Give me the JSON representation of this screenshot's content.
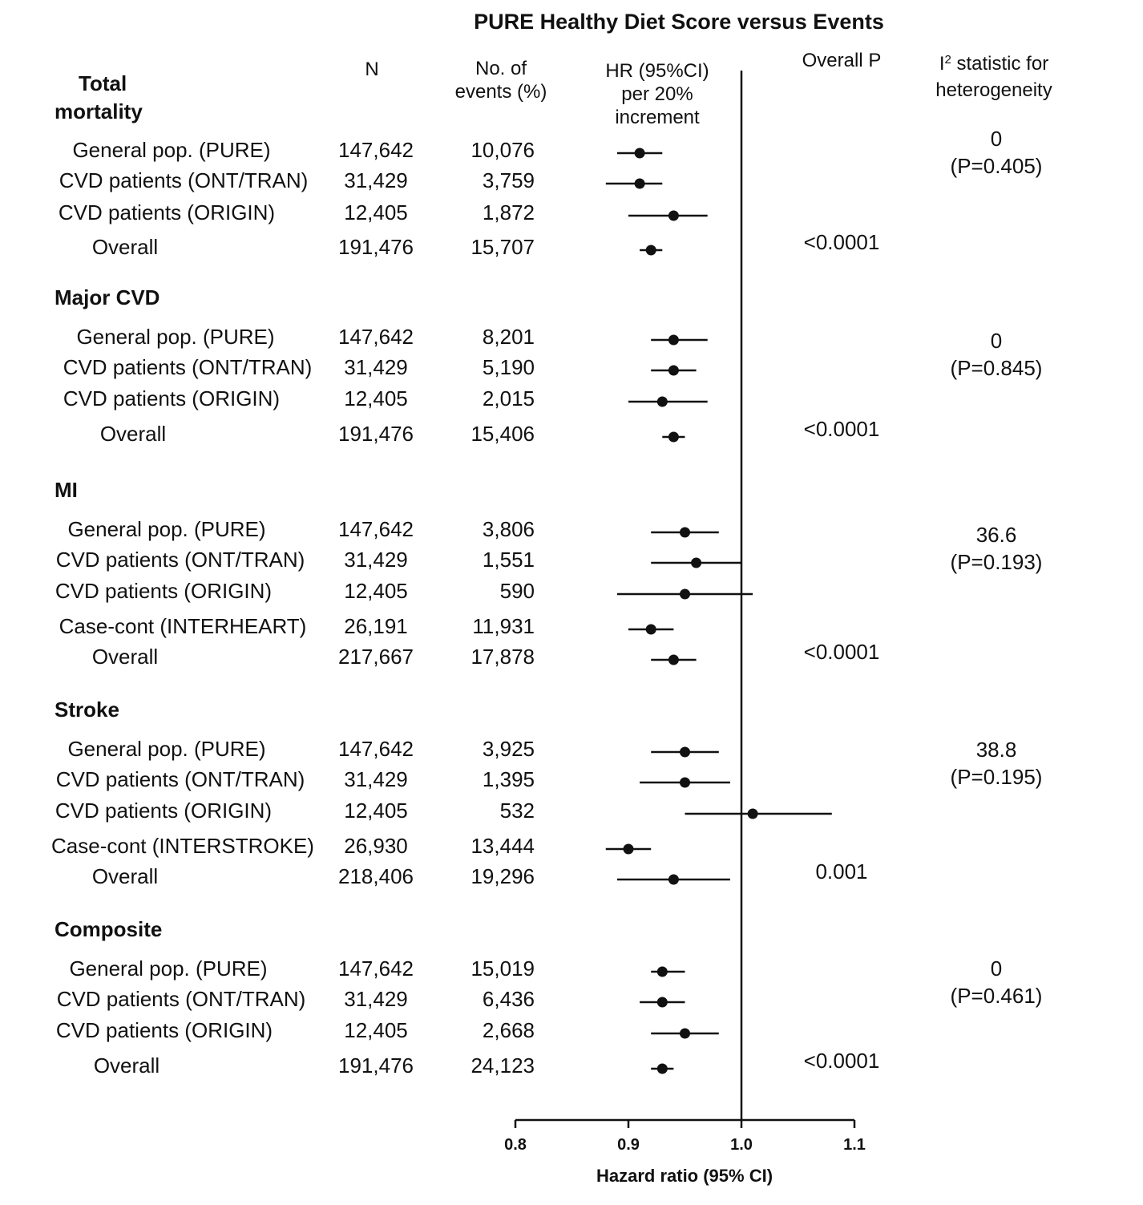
{
  "chart_data": {
    "type": "forest",
    "title": "PURE Healthy Diet Score versus Events",
    "xlabel": "Hazard ratio (95% CI)",
    "xlim": [
      0.8,
      1.1
    ],
    "xticks": [
      "0.8",
      "0.9",
      "1.0",
      "1.1"
    ],
    "reference_line": 1.0,
    "columns": {
      "n": "N",
      "events": [
        "No. of",
        "events (%)"
      ],
      "hr": [
        "HR (95%CI)",
        "per 20%",
        "increment"
      ],
      "p": "Overall P",
      "i2": [
        "I",
        "2",
        " statistic for",
        "heterogeneity"
      ]
    },
    "groups": [
      {
        "name": [
          "Total",
          "mortality"
        ],
        "i2": "0",
        "i2_p": "(P=0.405)",
        "overall_p": "<0.0001",
        "rows": [
          {
            "label": "General pop. (PURE)",
            "n": "147,642",
            "events": "10,076",
            "hr": 0.91,
            "lo": 0.89,
            "hi": 0.93
          },
          {
            "label": "CVD patients (ONT/TRAN)",
            "n": "31,429",
            "events": "3,759",
            "hr": 0.91,
            "lo": 0.88,
            "hi": 0.93
          },
          {
            "label": "CVD patients (ORIGIN)",
            "n": "12,405",
            "events": "1,872",
            "hr": 0.94,
            "lo": 0.9,
            "hi": 0.97
          },
          {
            "label": "Overall",
            "n": "191,476",
            "events": "15,707",
            "hr": 0.92,
            "lo": 0.91,
            "hi": 0.93
          }
        ]
      },
      {
        "name": [
          "Major CVD"
        ],
        "i2": "0",
        "i2_p": "(P=0.845)",
        "overall_p": "<0.0001",
        "rows": [
          {
            "label": "General pop. (PURE)",
            "n": "147,642",
            "events": "8,201",
            "hr": 0.94,
            "lo": 0.92,
            "hi": 0.97
          },
          {
            "label": "CVD patients (ONT/TRAN)",
            "n": "31,429",
            "events": "5,190",
            "hr": 0.94,
            "lo": 0.92,
            "hi": 0.96
          },
          {
            "label": "CVD patients (ORIGIN)",
            "n": "12,405",
            "events": "2,015",
            "hr": 0.93,
            "lo": 0.9,
            "hi": 0.97
          },
          {
            "label": "Overall",
            "n": "191,476",
            "events": "15,406",
            "hr": 0.94,
            "lo": 0.93,
            "hi": 0.95
          }
        ]
      },
      {
        "name": [
          "MI"
        ],
        "i2": "36.6",
        "i2_p": "(P=0.193)",
        "overall_p": "<0.0001",
        "rows": [
          {
            "label": "General pop. (PURE)",
            "n": "147,642",
            "events": "3,806",
            "hr": 0.95,
            "lo": 0.92,
            "hi": 0.98
          },
          {
            "label": "CVD patients (ONT/TRAN)",
            "n": "31,429",
            "events": "1,551",
            "hr": 0.96,
            "lo": 0.92,
            "hi": 1.0
          },
          {
            "label": "CVD patients (ORIGIN)",
            "n": "12,405",
            "events": "590",
            "hr": 0.95,
            "lo": 0.89,
            "hi": 1.01
          },
          {
            "label": "Case-cont (INTERHEART)",
            "n": "26,191",
            "events": "11,931",
            "hr": 0.92,
            "lo": 0.9,
            "hi": 0.94
          },
          {
            "label": "Overall",
            "n": "217,667",
            "events": "17,878",
            "hr": 0.94,
            "lo": 0.92,
            "hi": 0.96
          }
        ]
      },
      {
        "name": [
          "Stroke"
        ],
        "i2": "38.8",
        "i2_p": "(P=0.195)",
        "overall_p": "0.001",
        "rows": [
          {
            "label": "General pop. (PURE)",
            "n": "147,642",
            "events": "3,925",
            "hr": 0.95,
            "lo": 0.92,
            "hi": 0.98
          },
          {
            "label": "CVD patients (ONT/TRAN)",
            "n": "31,429",
            "events": "1,395",
            "hr": 0.95,
            "lo": 0.91,
            "hi": 0.99
          },
          {
            "label": "CVD patients (ORIGIN)",
            "n": "12,405",
            "events": "532",
            "hr": 1.01,
            "lo": 0.95,
            "hi": 1.08
          },
          {
            "label": "Case-cont (INTERSTROKE)",
            "n": "26,930",
            "events": "13,444",
            "hr": 0.9,
            "lo": 0.88,
            "hi": 0.92
          },
          {
            "label": "Overall",
            "n": "218,406",
            "events": "19,296",
            "hr": 0.94,
            "lo": 0.89,
            "hi": 0.99
          }
        ]
      },
      {
        "name": [
          "Composite"
        ],
        "i2": "0",
        "i2_p": "(P=0.461)",
        "overall_p": "<0.0001",
        "rows": [
          {
            "label": "General pop. (PURE)",
            "n": "147,642",
            "events": "15,019",
            "hr": 0.93,
            "lo": 0.92,
            "hi": 0.95
          },
          {
            "label": "CVD patients (ONT/TRAN)",
            "n": "31,429",
            "events": "6,436",
            "hr": 0.93,
            "lo": 0.91,
            "hi": 0.95
          },
          {
            "label": "CVD patients (ORIGIN)",
            "n": "12,405",
            "events": "2,668",
            "hr": 0.95,
            "lo": 0.92,
            "hi": 0.98
          },
          {
            "label": "Overall",
            "n": "191,476",
            "events": "24,123",
            "hr": 0.93,
            "lo": 0.92,
            "hi": 0.94
          }
        ]
      }
    ]
  }
}
